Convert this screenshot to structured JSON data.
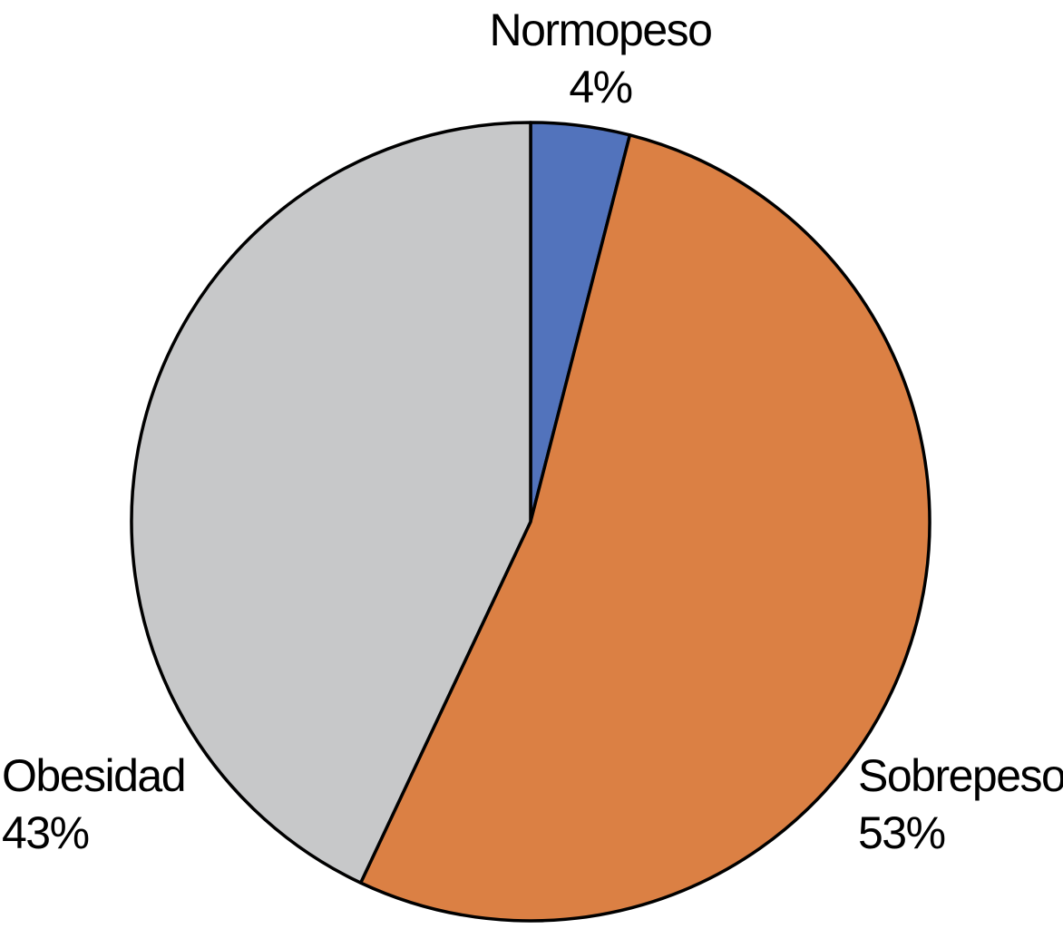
{
  "chart_data": {
    "type": "pie",
    "title": "",
    "labels": [
      "Normopeso",
      "Sobrepeso",
      "Obesidad"
    ],
    "values": [
      4,
      53,
      43
    ],
    "value_labels": [
      "4%",
      "53%",
      "43%"
    ],
    "colors": [
      "#5273BC",
      "#DB8044",
      "#C7C8C9"
    ],
    "outline_color": "#000000",
    "start_angle_deg": 0,
    "direction": "clockwise",
    "legend_position": "none",
    "label_style": "outside-category-and-percentage"
  },
  "labels": {
    "normopeso": {
      "name": "Normopeso",
      "value": "4%"
    },
    "sobrepeso": {
      "name": "Sobrepeso",
      "value": "53%"
    },
    "obesidad": {
      "name": "Obesidad",
      "value": "43%"
    }
  }
}
